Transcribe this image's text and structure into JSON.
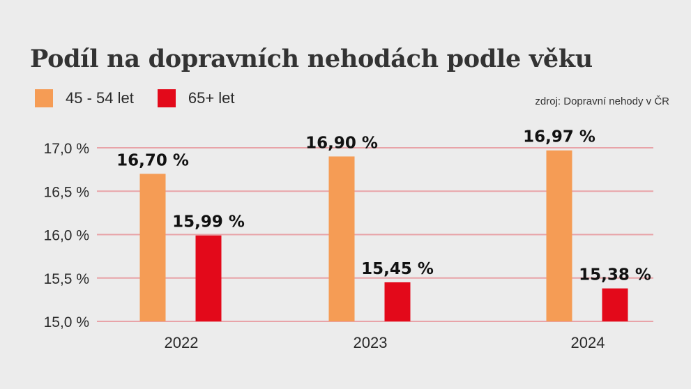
{
  "chart_data": {
    "type": "bar",
    "title": "Podíl na dopravních nehodách podle věku",
    "source": "zdroj: Dopravní nehody v ČR",
    "categories": [
      "2022",
      "2023",
      "2024"
    ],
    "series": [
      {
        "name": "45 - 54 let",
        "color": "#f59c55",
        "values": [
          16.7,
          16.9,
          16.97
        ],
        "labels": [
          "16,70 %",
          "16,90 %",
          "16,97 %"
        ]
      },
      {
        "name": "65+ let",
        "color": "#e3091a",
        "values": [
          15.99,
          15.45,
          15.38
        ],
        "labels": [
          "15,99 %",
          "15,45 %",
          "15,38 %"
        ]
      }
    ],
    "ylim": [
      15.0,
      17.0
    ],
    "yticks": [
      {
        "value": 17.0,
        "label": "17,0 %"
      },
      {
        "value": 16.5,
        "label": "16,5 %"
      },
      {
        "value": 16.0,
        "label": "16,0 %"
      },
      {
        "value": 15.5,
        "label": "15,5 %"
      },
      {
        "value": 15.0,
        "label": "15,0 %"
      }
    ],
    "grid": true,
    "gridline_color": "#e8a3a8",
    "legend_placement": "top-left"
  }
}
